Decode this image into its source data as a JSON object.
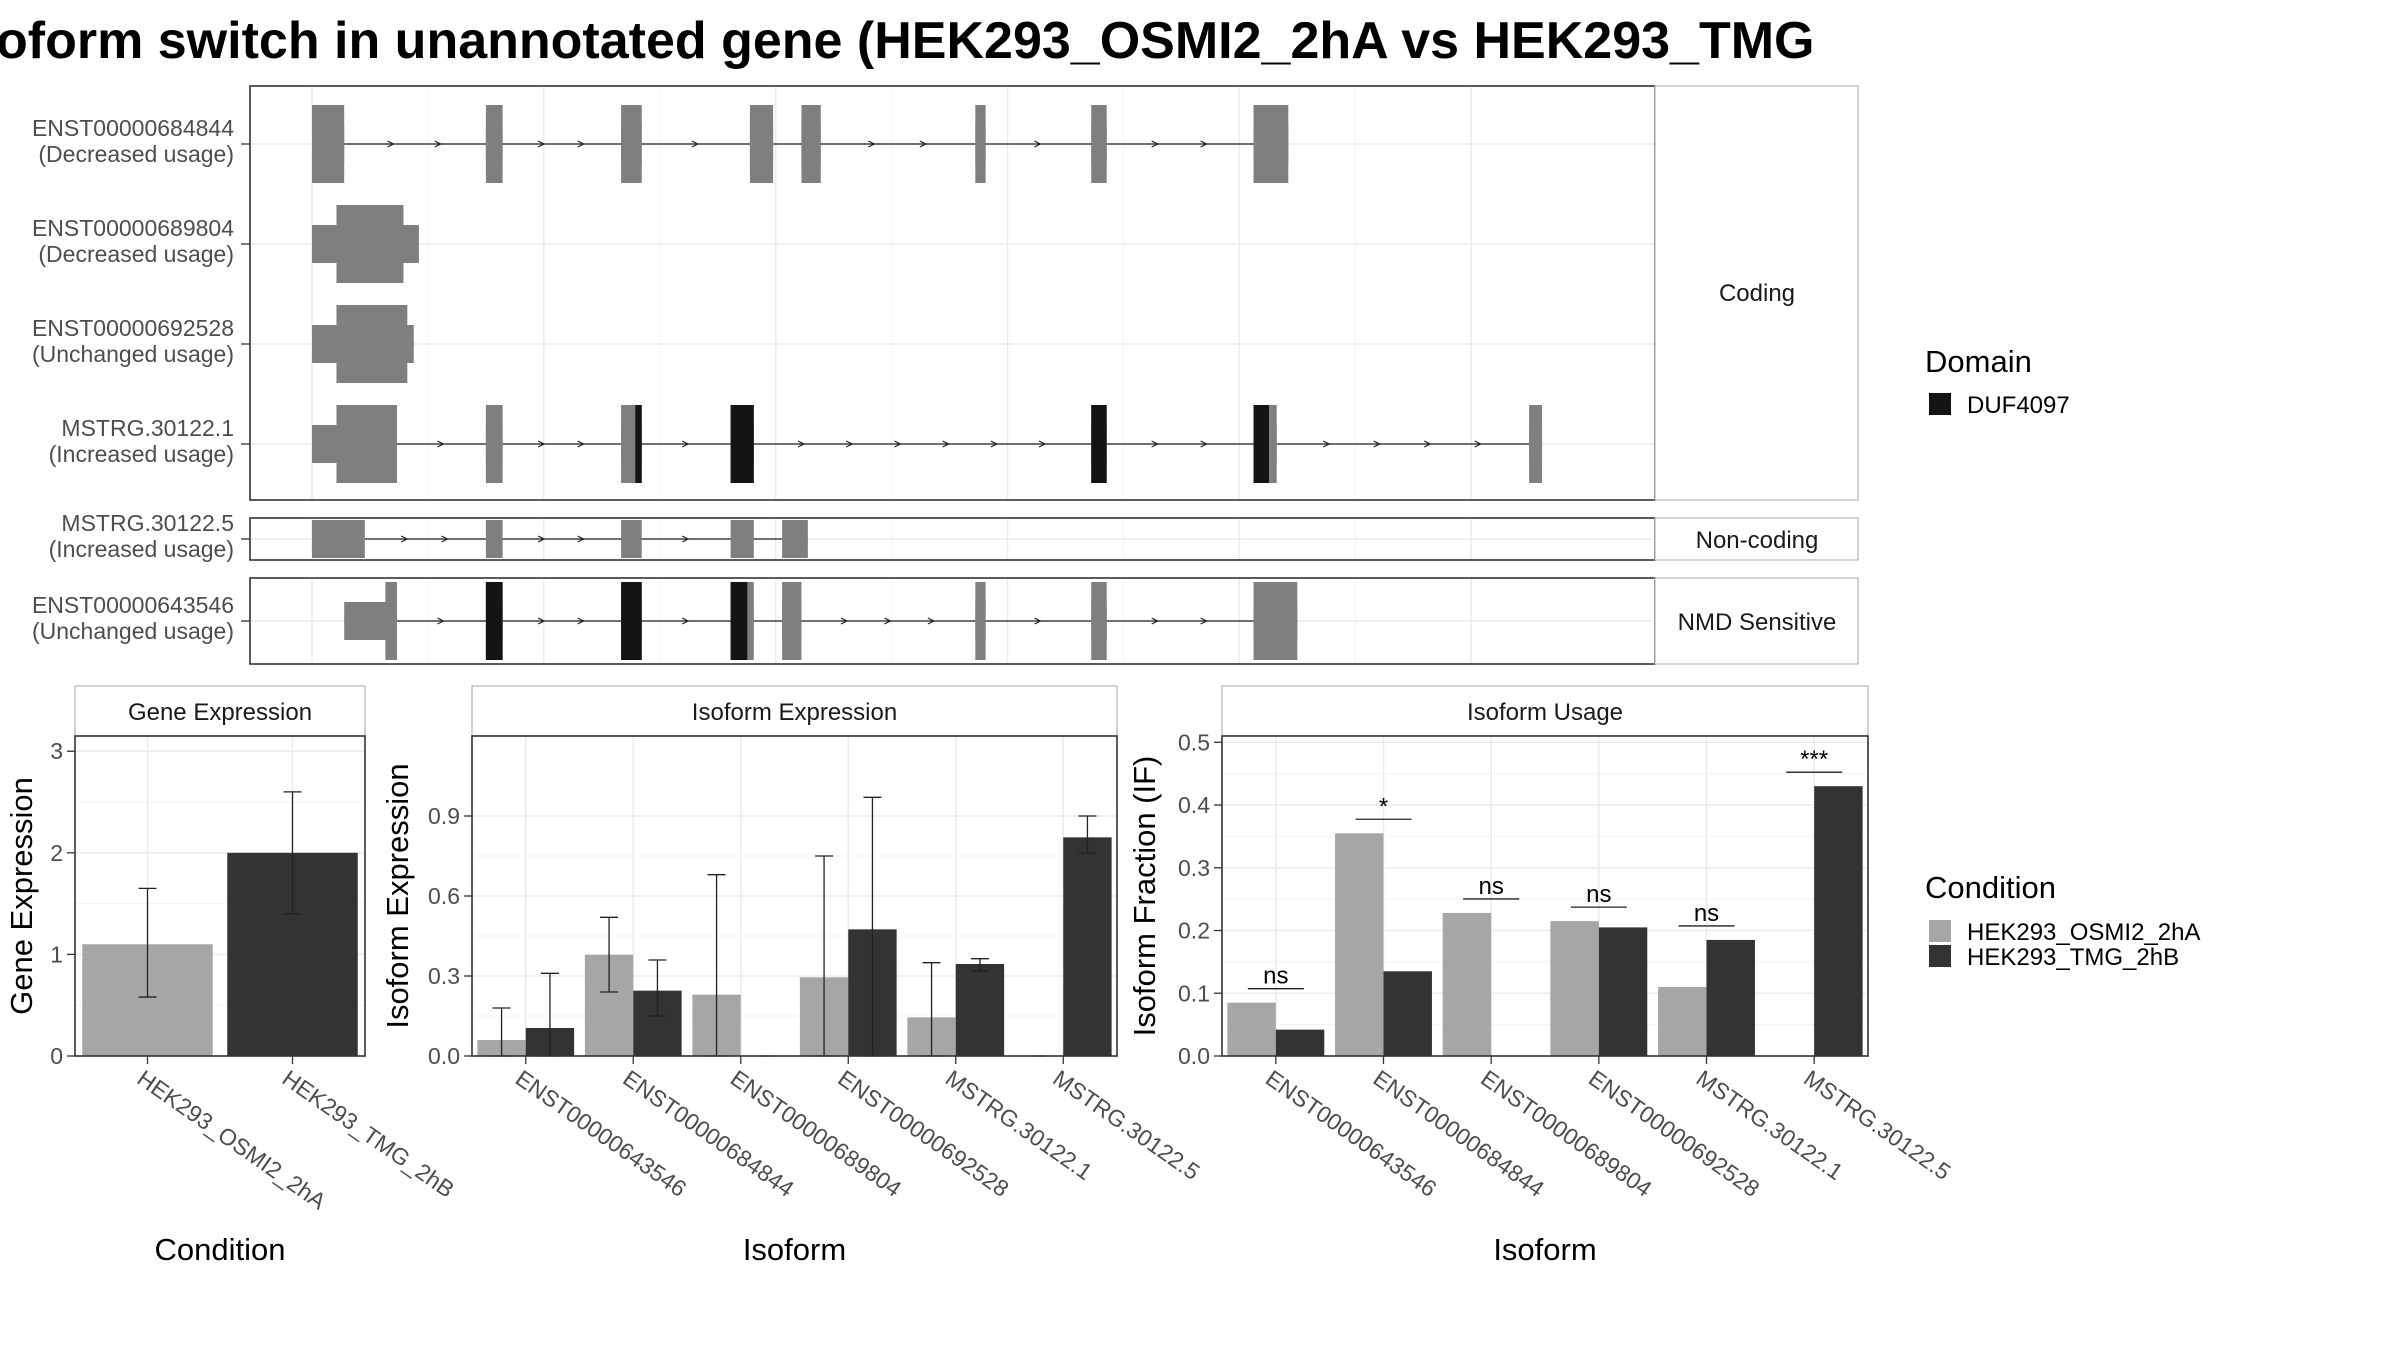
{
  "title": "oform switch in unannotated gene (HEK293_OSMI2_2hA vs HEK293_TMG",
  "colors": {
    "exon": "#7f7f7f",
    "domain": "#141414",
    "cond_a": "#a6a6a6",
    "cond_b": "#333333",
    "grid": "#ebebeb",
    "frame": "#333333"
  },
  "chart_data": [
    {
      "type": "gene_structure",
      "facets": [
        "Coding",
        "Non-coding",
        "NMD Sensitive"
      ],
      "legend": {
        "title": "Domain",
        "items": [
          "DUF4097"
        ]
      },
      "transcripts": [
        {
          "id": "ENST00000684844",
          "usage": "(Decreased usage)",
          "group": "Coding",
          "exons": [
            [
              0.0,
              0.025
            ],
            [
              0.135,
              0.148
            ],
            [
              0.24,
              0.256
            ],
            [
              0.34,
              0.358
            ],
            [
              0.38,
              0.395
            ],
            [
              0.515,
              0.523
            ],
            [
              0.605,
              0.617
            ],
            [
              0.731,
              0.758
            ]
          ],
          "cds": [
            [
              0.0,
              0.025
            ],
            [
              0.135,
              0.148
            ],
            [
              0.24,
              0.256
            ],
            [
              0.34,
              0.358
            ],
            [
              0.38,
              0.395
            ],
            [
              0.515,
              0.523
            ],
            [
              0.605,
              0.617
            ],
            [
              0.731,
              0.758
            ]
          ],
          "domains": []
        },
        {
          "id": "ENST00000689804",
          "usage": "(Decreased usage)",
          "group": "Coding",
          "exons": [
            [
              0.0,
              0.083
            ]
          ],
          "cds": [
            [
              0.019,
              0.071
            ]
          ],
          "domains": []
        },
        {
          "id": "ENST00000692528",
          "usage": "(Unchanged usage)",
          "group": "Coding",
          "exons": [
            [
              0.0,
              0.079
            ]
          ],
          "cds": [
            [
              0.019,
              0.074
            ]
          ],
          "domains": []
        },
        {
          "id": "MSTRG.30122.1",
          "usage": "(Increased usage)",
          "group": "Coding",
          "exons": [
            [
              0.0,
              0.066
            ],
            [
              0.135,
              0.148
            ],
            [
              0.24,
              0.256
            ],
            [
              0.325,
              0.343
            ],
            [
              0.605,
              0.617
            ],
            [
              0.731,
              0.749
            ],
            [
              0.945,
              0.955
            ]
          ],
          "cds": [
            [
              0.019,
              0.066
            ],
            [
              0.135,
              0.148
            ],
            [
              0.24,
              0.256
            ],
            [
              0.325,
              0.343
            ],
            [
              0.605,
              0.617
            ],
            [
              0.731,
              0.749
            ],
            [
              0.945,
              0.955
            ]
          ],
          "domains": [
            [
              0.251,
              0.256
            ],
            [
              0.325,
              0.343
            ],
            [
              0.605,
              0.617
            ],
            [
              0.731,
              0.743
            ]
          ]
        },
        {
          "id": "MSTRG.30122.5",
          "usage": "(Increased usage)",
          "group": "Non-coding",
          "exons": [
            [
              0.0,
              0.041
            ],
            [
              0.135,
              0.148
            ],
            [
              0.24,
              0.256
            ],
            [
              0.325,
              0.343
            ],
            [
              0.365,
              0.385
            ]
          ],
          "cds": [],
          "domains": []
        },
        {
          "id": "ENST00000643546",
          "usage": "(Unchanged usage)",
          "group": "NMD Sensitive",
          "exons": [
            [
              0.025,
              0.066
            ],
            [
              0.135,
              0.148
            ],
            [
              0.24,
              0.256
            ],
            [
              0.325,
              0.343
            ],
            [
              0.365,
              0.38
            ],
            [
              0.515,
              0.523
            ],
            [
              0.605,
              0.617
            ],
            [
              0.731,
              0.765
            ]
          ],
          "cds": [
            [
              0.057,
              0.066
            ],
            [
              0.135,
              0.148
            ],
            [
              0.24,
              0.256
            ],
            [
              0.325,
              0.343
            ],
            [
              0.365,
              0.38
            ],
            [
              0.515,
              0.523
            ],
            [
              0.605,
              0.617
            ],
            [
              0.731,
              0.765
            ]
          ],
          "domains": [
            [
              0.135,
              0.148
            ],
            [
              0.24,
              0.256
            ],
            [
              0.325,
              0.338
            ]
          ]
        }
      ]
    },
    {
      "type": "bar",
      "title": "Gene Expression",
      "xlabel": "Condition",
      "ylabel": "Gene Expression",
      "ylim": [
        0,
        3.15
      ],
      "yticks": [
        0,
        1,
        2,
        3
      ],
      "categories": [
        "HEK293_OSMI2_2hA",
        "HEK293_TMG_2hB"
      ],
      "values": [
        1.1,
        2.0
      ],
      "errors": [
        [
          0.58,
          1.65
        ],
        [
          1.4,
          2.6
        ]
      ]
    },
    {
      "type": "bar",
      "title": "Isoform Expression",
      "xlabel": "Isoform",
      "ylabel": "Isoform Expression",
      "ylim": [
        0,
        1.2
      ],
      "yticks": [
        0.0,
        0.3,
        0.6,
        0.9
      ],
      "yticklabels": [
        "0.0",
        "0.3",
        "0.6",
        "0.9"
      ],
      "categories": [
        "ENST00000643546",
        "ENST00000684844",
        "ENST00000689804",
        "ENST00000692528",
        "MSTRG.30122.1",
        "MSTRG.30122.5"
      ],
      "series": [
        {
          "name": "HEK293_OSMI2_2hA",
          "values": [
            0.06,
            0.38,
            0.23,
            0.295,
            0.145,
            0.0
          ],
          "errors": [
            [
              0.0,
              0.18
            ],
            [
              0.24,
              0.52
            ],
            [
              0.0,
              0.68
            ],
            [
              0.0,
              0.75
            ],
            [
              0.0,
              0.35
            ],
            [
              0.0,
              0.0
            ]
          ]
        },
        {
          "name": "HEK293_TMG_2hB",
          "values": [
            0.105,
            0.245,
            0.0,
            0.475,
            0.345,
            0.82
          ],
          "errors": [
            [
              0.0,
              0.31
            ],
            [
              0.15,
              0.36
            ],
            [
              0.0,
              0.0
            ],
            [
              0.0,
              0.97
            ],
            [
              0.32,
              0.365
            ],
            [
              0.76,
              0.9
            ]
          ]
        }
      ]
    },
    {
      "type": "bar",
      "title": "Isoform Usage",
      "xlabel": "Isoform",
      "ylabel": "Isoform Fraction (IF)",
      "ylim": [
        0,
        0.51
      ],
      "yticks": [
        0.0,
        0.1,
        0.2,
        0.3,
        0.4,
        0.5
      ],
      "yticklabels": [
        "0.0",
        "0.1",
        "0.2",
        "0.3",
        "0.4",
        "0.5"
      ],
      "categories": [
        "ENST00000643546",
        "ENST00000684844",
        "ENST00000689804",
        "ENST00000692528",
        "MSTRG.30122.1",
        "MSTRG.30122.5"
      ],
      "series": [
        {
          "name": "HEK293_OSMI2_2hA",
          "values": [
            0.085,
            0.355,
            0.228,
            0.215,
            0.11,
            0.0
          ]
        },
        {
          "name": "HEK293_TMG_2hB",
          "values": [
            0.042,
            0.135,
            0.0,
            0.205,
            0.185,
            0.43
          ]
        }
      ],
      "significance": [
        "ns",
        "*",
        "ns",
        "ns",
        "ns",
        "***"
      ]
    }
  ],
  "legends": {
    "condition": {
      "title": "Condition",
      "items": [
        "HEK293_OSMI2_2hA",
        "HEK293_TMG_2hB"
      ]
    }
  }
}
